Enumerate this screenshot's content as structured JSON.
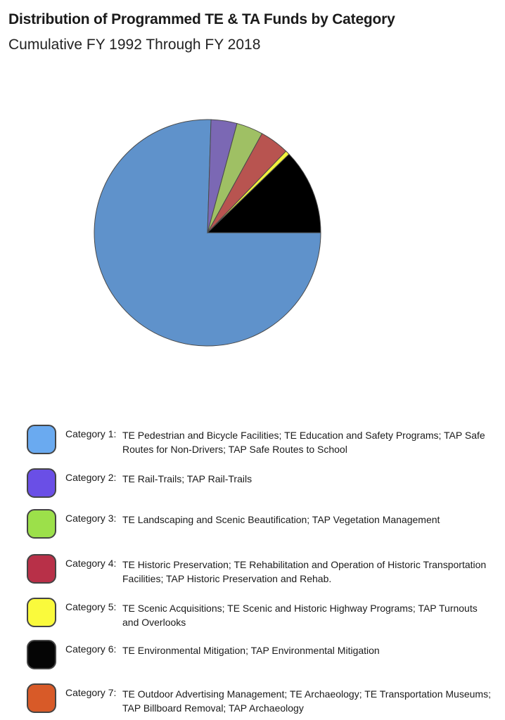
{
  "chart_data": {
    "type": "pie",
    "title": "Distribution of Programmed TE & TA Funds by Category",
    "subtitle": "Cumulative FY 1992 Through FY 2018",
    "slices": [
      {
        "category": "Category 1",
        "prefix": "Category 1:",
        "label": "TE Pedestrian and Bicycle Facilities; TE Education and Safety Programs; TAP Safe Routes for Non-Drivers; TAP Safe Routes to School",
        "value": 75.5,
        "color": "#5f92cb",
        "legend_color": "#6aaaf0"
      },
      {
        "category": "Category 2",
        "prefix": "Category 2:",
        "label": "TE Rail-Trails; TAP Rail-Trails",
        "value": 3.7,
        "color": "#7b68b4",
        "legend_color": "#6a4fe6"
      },
      {
        "category": "Category 3",
        "prefix": "Category 3:",
        "label": "TE Landscaping and Scenic Beautification; TAP Vegetation Management",
        "value": 3.8,
        "color": "#9fc064",
        "legend_color": "#9ce04a"
      },
      {
        "category": "Category 4",
        "prefix": "Category 4:",
        "label": "TE Historic Preservation; TE Rehabilitation and Operation of Historic Transportation Facilities; TAP Historic Preservation and Rehab.",
        "value": 4.2,
        "color": "#b85450",
        "legend_color": "#b83048"
      },
      {
        "category": "Category 5",
        "prefix": "Category 5:",
        "label": "TE Scenic Acquisitions; TE Scenic and Historic Highway Programs; TAP Turnouts and Overlooks",
        "value": 0.6,
        "color": "#f2f23a",
        "legend_color": "#fafa3c"
      },
      {
        "category": "Category 6",
        "prefix": "Category 6:",
        "label": "TE Environmental Mitigation; TAP Environmental Mitigation",
        "value": 12.2,
        "color": "#000000",
        "legend_color": "#050505"
      },
      {
        "category": "Category 7",
        "prefix": "Category 7:",
        "label": "TE Outdoor Advertising Management; TE Archaeology; TE Transportation Museums; TAP Billboard Removal; TAP Archaeology",
        "value": 0.0,
        "color": "#d8592a",
        "legend_color": "#d85a28"
      }
    ],
    "start_angle_deg": 90,
    "direction": "clockwise",
    "legend_position": "bottom"
  }
}
